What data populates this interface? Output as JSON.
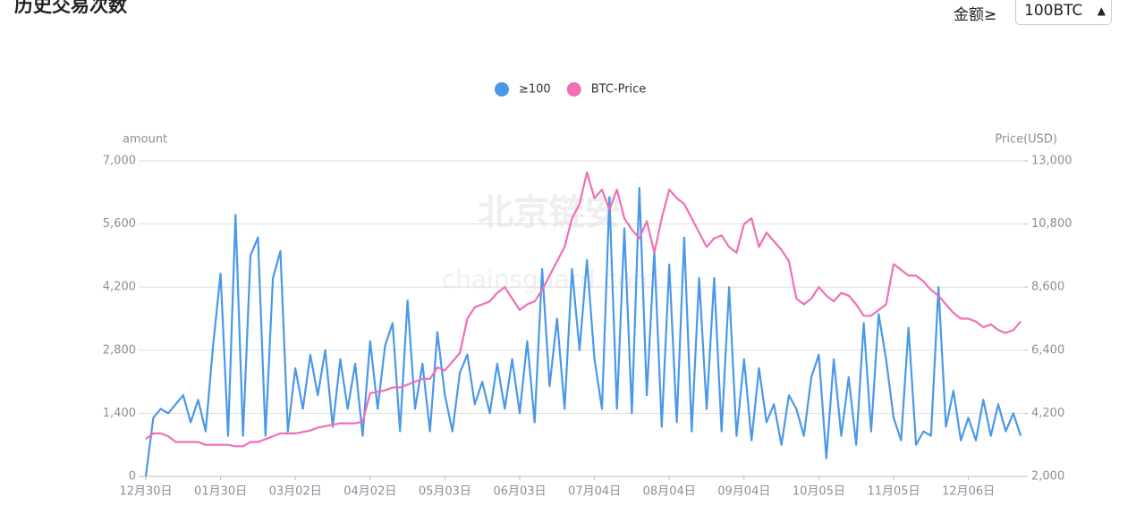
{
  "header": {
    "title": "历史交易次数",
    "filter_label": "金额≥",
    "filter_value": "100BTC"
  },
  "watermark": {
    "cn": "北京链安",
    "en": "chainsguard.com"
  },
  "chart_data": {
    "type": "line",
    "y_axis_label": "amount",
    "y2_axis_label": "Price(USD)",
    "categories": [
      "12月30日",
      null,
      null,
      null,
      null,
      null,
      null,
      null,
      null,
      null,
      "01月30日",
      null,
      null,
      null,
      null,
      null,
      null,
      null,
      null,
      null,
      "03月02日",
      null,
      null,
      null,
      null,
      null,
      null,
      null,
      null,
      null,
      "04月02日",
      null,
      null,
      null,
      null,
      null,
      null,
      null,
      null,
      null,
      "05月03日",
      null,
      null,
      null,
      null,
      null,
      null,
      null,
      null,
      null,
      "06月03日",
      null,
      null,
      null,
      null,
      null,
      null,
      null,
      null,
      null,
      "07月04日",
      null,
      null,
      null,
      null,
      null,
      null,
      null,
      null,
      null,
      "08月04日",
      null,
      null,
      null,
      null,
      null,
      null,
      null,
      null,
      null,
      "09月04日",
      null,
      null,
      null,
      null,
      null,
      null,
      null,
      null,
      null,
      "10月05日",
      null,
      null,
      null,
      null,
      null,
      null,
      null,
      null,
      null,
      "11月05日",
      null,
      null,
      null,
      null,
      null,
      null,
      null,
      null,
      null,
      "12月06日",
      null,
      null,
      null,
      null,
      null,
      null,
      null
    ],
    "series": [
      {
        "name": "≥100",
        "color": "#4a98e8",
        "axis": "y",
        "values": [
          0,
          1300,
          1500,
          1400,
          1600,
          1800,
          1200,
          1700,
          1000,
          2900,
          4500,
          900,
          5800,
          900,
          4900,
          5300,
          900,
          4400,
          5000,
          1000,
          2400,
          1500,
          2700,
          1800,
          2800,
          1100,
          2600,
          1500,
          2500,
          900,
          3000,
          1500,
          2900,
          3400,
          1000,
          3900,
          1500,
          2500,
          1000,
          3200,
          1800,
          1000,
          2300,
          2700,
          1600,
          2100,
          1400,
          2500,
          1500,
          2600,
          1400,
          3000,
          1200,
          4600,
          2000,
          3500,
          1500,
          4600,
          2800,
          4800,
          2600,
          1500,
          6200,
          1500,
          5500,
          1400,
          6400,
          1800,
          5000,
          1100,
          4700,
          1200,
          5300,
          1000,
          4400,
          1500,
          4400,
          1000,
          4200,
          900,
          2600,
          800,
          2400,
          1200,
          1600,
          700,
          1800,
          1500,
          900,
          2200,
          2700,
          400,
          2600,
          900,
          2200,
          700,
          3400,
          1000,
          3600,
          2600,
          1300,
          800,
          3300,
          700,
          1000,
          900,
          4200,
          1100,
          1900,
          800,
          1300,
          800,
          1700,
          900,
          1600,
          1000,
          1400,
          900
        ]
      },
      {
        "name": "BTC-Price",
        "color": "#f06fb5",
        "axis": "y2",
        "values": [
          3300,
          3500,
          3500,
          3400,
          3200,
          3200,
          3200,
          3200,
          3100,
          3100,
          3100,
          3100,
          3050,
          3050,
          3200,
          3200,
          3300,
          3400,
          3500,
          3500,
          3500,
          3550,
          3600,
          3700,
          3750,
          3800,
          3850,
          3850,
          3850,
          3900,
          4900,
          4950,
          5000,
          5100,
          5100,
          5200,
          5300,
          5400,
          5400,
          5800,
          5700,
          6000,
          6300,
          7500,
          7900,
          8000,
          8100,
          8400,
          8600,
          8200,
          7800,
          8000,
          8100,
          8500,
          9000,
          9500,
          10000,
          11000,
          11500,
          12600,
          11700,
          12000,
          11300,
          12000,
          11000,
          10600,
          10300,
          10900,
          9800,
          11000,
          12000,
          11700,
          11500,
          11000,
          10500,
          10000,
          10300,
          10400,
          10000,
          9800,
          10800,
          11000,
          10000,
          10500,
          10200,
          9900,
          9500,
          8200,
          8000,
          8200,
          8600,
          8300,
          8100,
          8400,
          8300,
          8000,
          7600,
          7600,
          7800,
          8000,
          9400,
          9200,
          9000,
          9000,
          8800,
          8500,
          8300,
          8000,
          7700,
          7500,
          7500,
          7400,
          7200,
          7300,
          7100,
          7000,
          7100,
          7400
        ]
      }
    ],
    "ylim": [
      0,
      7000
    ],
    "yticks": [
      0,
      {
        "value": 1400,
        "label": "1,400"
      },
      {
        "value": 2800,
        "label": "2,800"
      },
      {
        "value": 4200,
        "label": "4,200"
      },
      {
        "value": 5600,
        "label": "5,600"
      },
      {
        "value": 7000,
        "label": "7,000"
      }
    ],
    "y2lim": [
      2000,
      13000
    ],
    "y2ticks": [
      {
        "value": 2000,
        "label": "2,000"
      },
      {
        "value": 4200,
        "label": "4,200"
      },
      {
        "value": 6400,
        "label": "6,400"
      },
      {
        "value": 8600,
        "label": "8,600"
      },
      {
        "value": 10800,
        "label": "10,800"
      },
      {
        "value": 13000,
        "label": "13,000"
      }
    ],
    "grid": true
  }
}
